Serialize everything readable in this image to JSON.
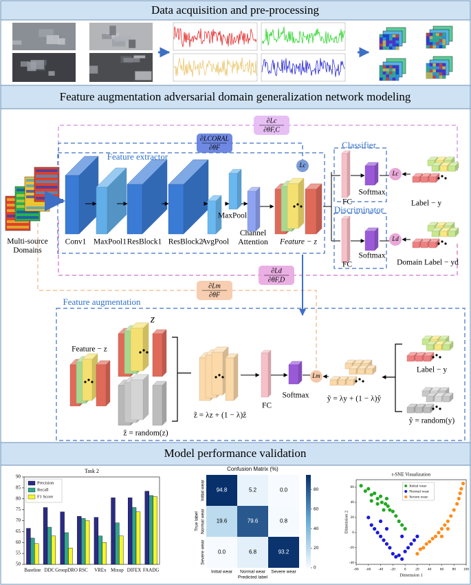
{
  "sections": [
    {
      "title": "Data acquisition and pre-processing"
    },
    {
      "title": "Feature augmentation adversarial domain generalization network modeling"
    },
    {
      "title": "Model performance validation"
    }
  ],
  "diagram": {
    "input": "Multi-source Domains",
    "extractor": {
      "title": "Feature extractor",
      "layers": [
        "Conv1",
        "MaxPool1",
        "ResBlock1",
        "ResBlock2",
        "AvgPool",
        "MaxPool",
        "Channel Attention"
      ]
    },
    "feature": "Feature − z",
    "center_loss": "Lc",
    "classifier": {
      "title": "Classifier",
      "fc": "FC",
      "softmax": "Softmax",
      "loss": "Lc",
      "label": "Label − y"
    },
    "discriminator": {
      "title": "Discriminator",
      "fc": "FC",
      "softmax": "Softmax",
      "loss": "Ld",
      "label": "Domain Label − yd"
    },
    "gradients": [
      {
        "num": "∂Lc",
        "den": "∂θF,C"
      },
      {
        "num": "∂LCORAL",
        "den": "∂θF"
      },
      {
        "num": "∂Ld",
        "den": "∂θF,D"
      },
      {
        "num": "∂Lm",
        "den": "∂θF"
      }
    ],
    "augmentation": {
      "title": "Feature augmentation",
      "z": "z",
      "feature": "Feature − z",
      "random_z": "ẑ = random(z)",
      "mix_z": "z̃ = λz + (1 − λ)ẑ",
      "fc": "FC",
      "softmax": "Softmax",
      "loss": "Lm",
      "mix_y": "ỹ = λy + (1 − λ)ŷ",
      "label": "Label − y",
      "random_y": "ŷ = random(y)"
    }
  },
  "chart_data": [
    {
      "type": "bar",
      "title": "Task 2",
      "categories": [
        "Baseline",
        "DDC",
        "GroupDRO",
        "RSC",
        "VREx",
        "Mixup",
        "DIFEX",
        "FAADG"
      ],
      "series": [
        {
          "name": "Precision",
          "color": "#2b2b86",
          "values": [
            66.5,
            76,
            74,
            72,
            71.5,
            80.5,
            80.5,
            83.5
          ]
        },
        {
          "name": "Recall",
          "color": "#33a58c",
          "values": [
            62,
            67,
            64.5,
            71,
            63,
            69,
            76,
            81.5
          ]
        },
        {
          "name": "F1 Score",
          "color": "#f5f52a",
          "values": [
            59.5,
            63,
            57.5,
            70,
            60,
            63,
            74,
            81
          ]
        }
      ],
      "ylim": [
        50,
        90
      ],
      "yticks": [
        50,
        55,
        60,
        65,
        70,
        75,
        80,
        85,
        90
      ],
      "legend": "upper left"
    },
    {
      "type": "heatmap",
      "title": "Confusion Matrix (%)",
      "x_categories": [
        "Initial wear",
        "Normal wear",
        "Severe wear"
      ],
      "y_categories": [
        "Initial wear",
        "Normal wear",
        "Severe wear"
      ],
      "values": [
        [
          94.8,
          5.2,
          0
        ],
        [
          19.6,
          79.6,
          0.8
        ],
        [
          0,
          6.8,
          93.2
        ]
      ],
      "value_labels": [
        [
          "94.8",
          "5.2",
          "0.0"
        ],
        [
          "19.6",
          "79.6",
          "0.8"
        ],
        [
          "0.0",
          "6.8",
          "93.2"
        ]
      ],
      "xlabel": "Predicted label",
      "ylabel": "True label",
      "clim": [
        0,
        94.8
      ],
      "colorbar_ticks": [
        0,
        20,
        40,
        60,
        80
      ],
      "colormap": [
        "#f7fbff",
        "#6baed6",
        "#08306b"
      ]
    },
    {
      "type": "scatter",
      "title": "t-SNE Visualization",
      "xlabel": "Dimension 1",
      "ylabel": "Dimension 2",
      "xlim": [
        -80,
        100
      ],
      "ylim": [
        -42,
        70
      ],
      "xticks": [
        -80,
        -60,
        -40,
        -20,
        0,
        20,
        40,
        60,
        80,
        100
      ],
      "yticks": [
        -40,
        -20,
        0,
        20,
        40,
        60
      ],
      "legend": "upper right",
      "series": [
        {
          "name": "Initial wear",
          "color": "#22a822",
          "x": [
            -72,
            -65,
            -60,
            -55,
            -50,
            -45,
            -40,
            -38,
            -32,
            -28,
            -25,
            -20,
            -15,
            -10,
            -5,
            0,
            -55,
            -45,
            -35,
            -30
          ],
          "y": [
            62,
            55,
            58,
            50,
            52,
            45,
            48,
            40,
            38,
            35,
            30,
            28,
            22,
            15,
            10,
            5,
            42,
            38,
            30,
            45
          ]
        },
        {
          "name": "Normal wear",
          "color": "#1a1adc",
          "x": [
            -60,
            -55,
            -50,
            -45,
            -40,
            -35,
            -30,
            -25,
            -20,
            -15,
            -10,
            -5,
            0,
            5,
            10,
            15,
            20,
            -40,
            -30,
            -5
          ],
          "y": [
            20,
            10,
            5,
            0,
            -5,
            -10,
            -15,
            -20,
            -28,
            -32,
            -30,
            -35,
            -25,
            -20,
            -15,
            -10,
            -5,
            15,
            5,
            -5
          ]
        },
        {
          "name": "Severe wear",
          "color": "#ff8c1a",
          "x": [
            20,
            25,
            30,
            35,
            40,
            45,
            50,
            55,
            60,
            65,
            70,
            75,
            80,
            85,
            88,
            90,
            92,
            95,
            60,
            70
          ],
          "y": [
            -28,
            -22,
            -20,
            -15,
            -12,
            -8,
            -5,
            0,
            5,
            10,
            15,
            22,
            30,
            38,
            45,
            52,
            58,
            65,
            -5,
            5
          ]
        }
      ]
    }
  ]
}
